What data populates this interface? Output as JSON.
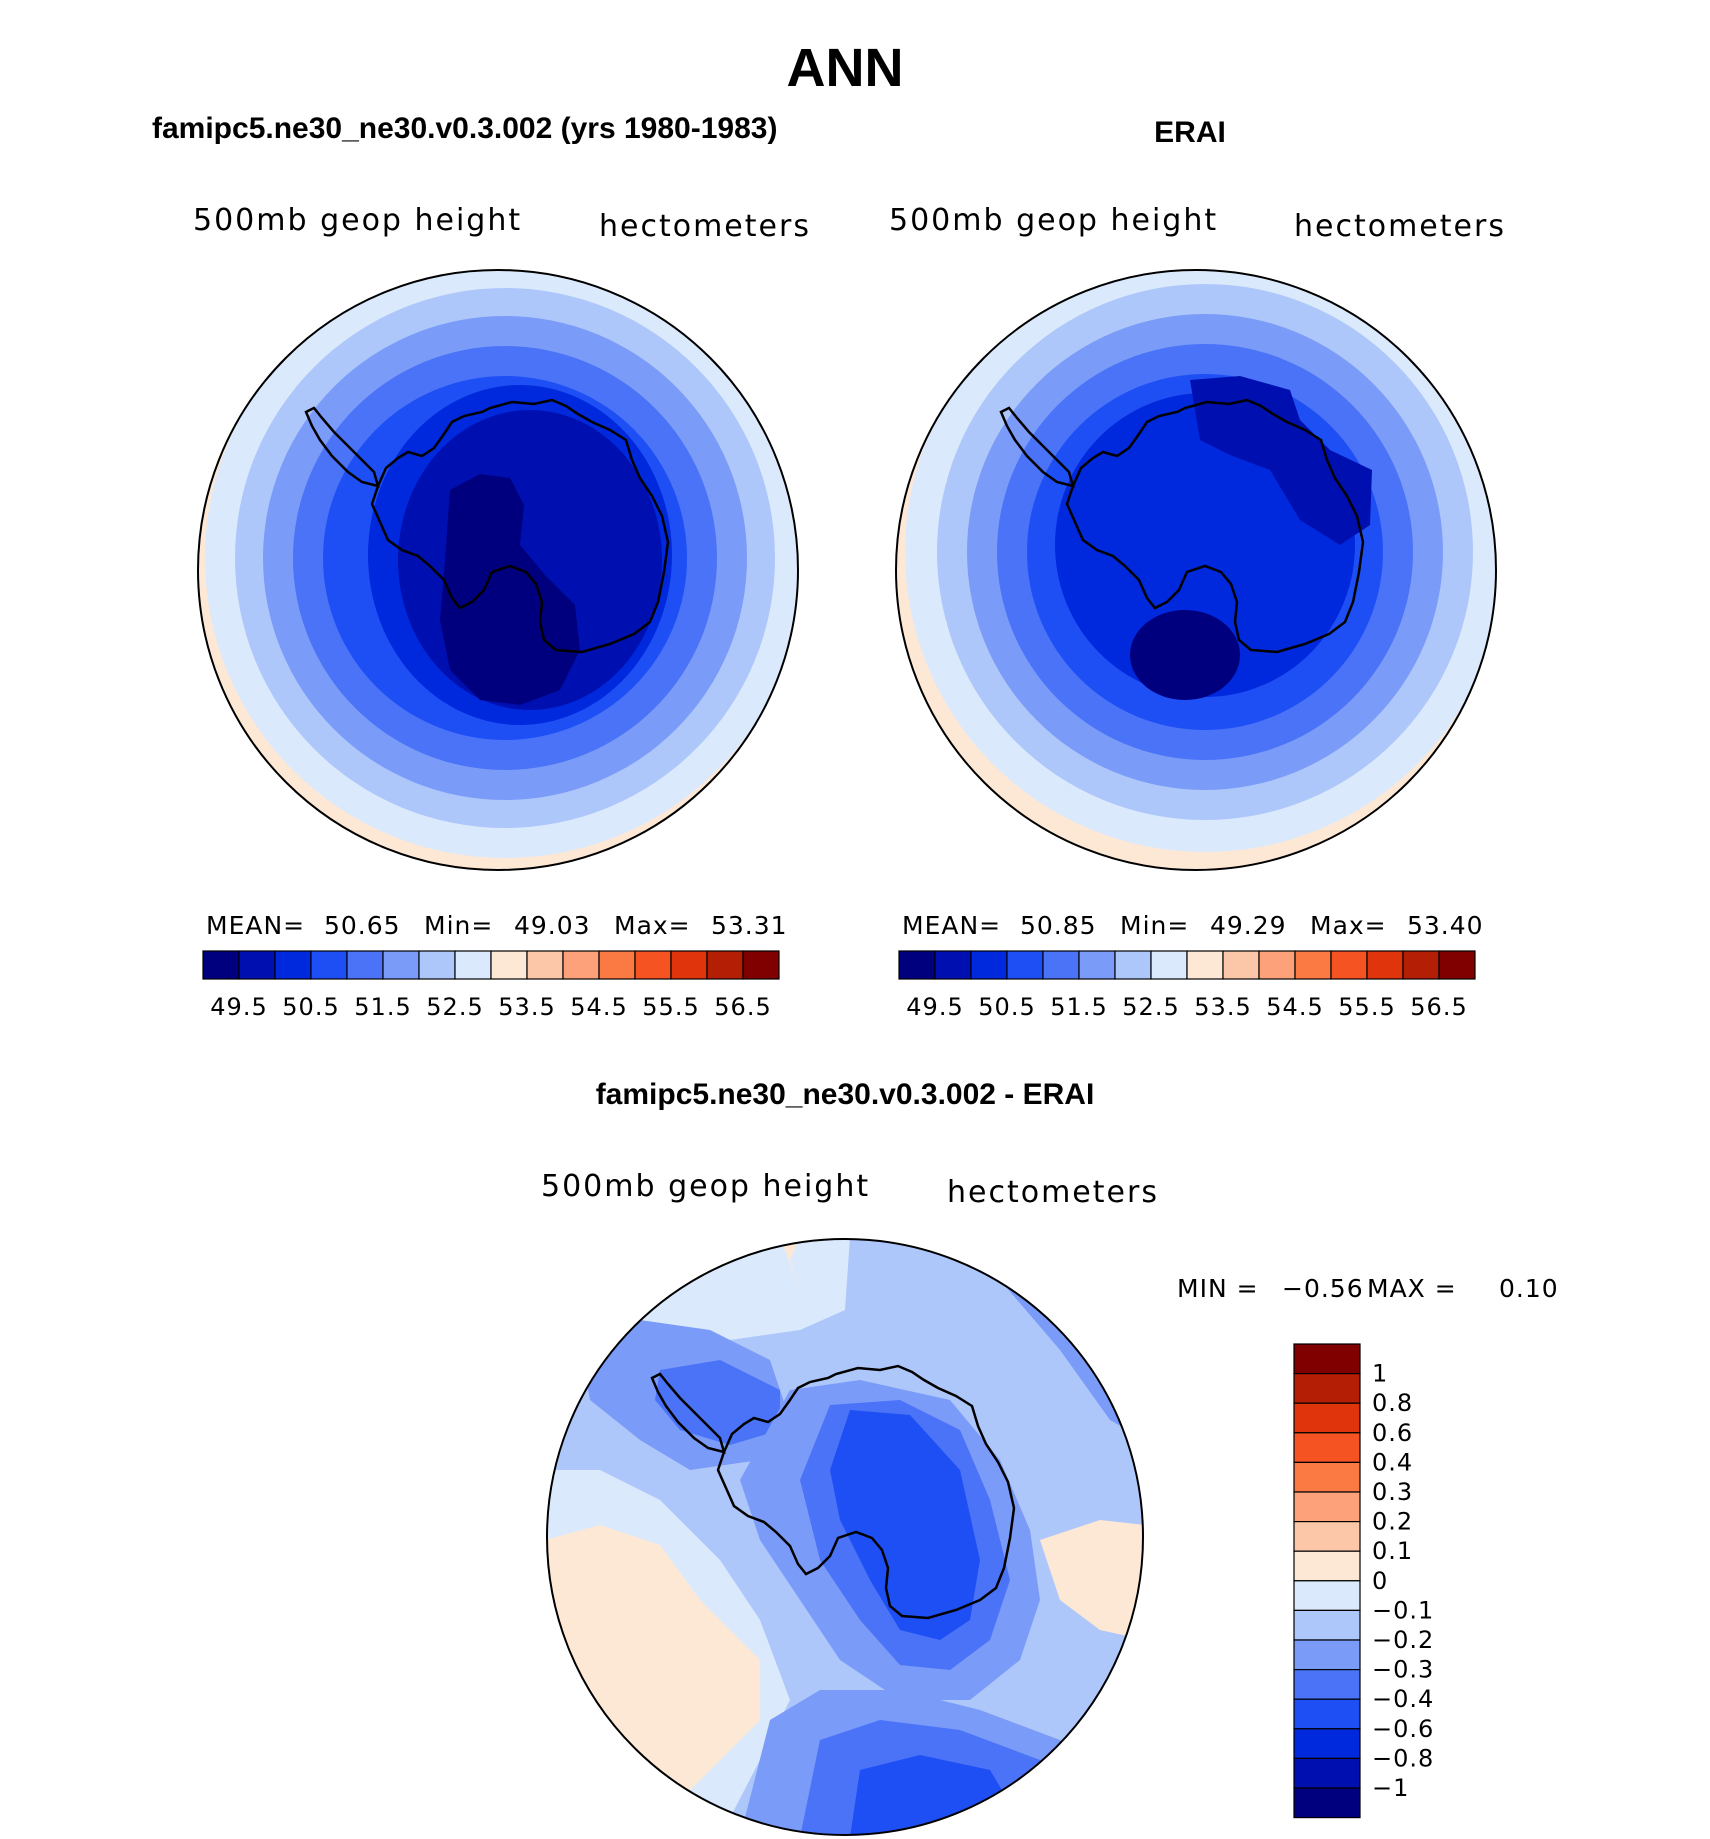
{
  "title": "ANN",
  "panels": [
    {
      "heading": "famipc5.ne30_ne30.v0.3.002 (yrs 1980-1983)",
      "variable": "500mb geop height",
      "units": "hectometers",
      "stats": {
        "mean_label": "MEAN=",
        "mean": "50.65",
        "min_label": "Min=",
        "min": "49.03",
        "max_label": "Max=",
        "max": "53.31"
      }
    },
    {
      "heading": "ERAI",
      "variable": "500mb geop height",
      "units": "hectometers",
      "stats": {
        "mean_label": "MEAN=",
        "mean": "50.85",
        "min_label": "Min=",
        "min": "49.29",
        "max_label": "Max=",
        "max": "53.40"
      }
    },
    {
      "heading": "famipc5.ne30_ne30.v0.3.002 - ERAI",
      "variable": "500mb geop height",
      "units": "hectometers",
      "stats": {
        "min_label": "MIN =",
        "min": "−0.56",
        "max_label": "MAX =",
        "max": "0.10"
      }
    }
  ],
  "colorbar_main": {
    "colors": [
      "#00007f",
      "#0010b0",
      "#0028dd",
      "#1e4ff5",
      "#4a73f7",
      "#7a9bf8",
      "#aec7fb",
      "#dbe9fc",
      "#fde8d6",
      "#fcc6a8",
      "#fca17a",
      "#fb7a44",
      "#f55322",
      "#e0340c",
      "#b31e05",
      "#800000"
    ],
    "tick_labels": [
      "49.5",
      "50.5",
      "51.5",
      "52.5",
      "53.5",
      "54.5",
      "55.5",
      "56.5"
    ]
  },
  "colorbar_diff": {
    "colors": [
      "#00007f",
      "#0010b0",
      "#0028dd",
      "#1e4ff5",
      "#4a73f7",
      "#7a9bf8",
      "#aec7fb",
      "#dbe9fc",
      "#fde8d6",
      "#fcc6a8",
      "#fca17a",
      "#fb7a44",
      "#f55322",
      "#e0340c",
      "#b31e05",
      "#800000"
    ],
    "tick_labels": [
      "1",
      "0.8",
      "0.6",
      "0.4",
      "0.3",
      "0.2",
      "0.1",
      "0",
      "−0.1",
      "−0.2",
      "−0.3",
      "−0.4",
      "−0.6",
      "−0.8",
      "−1"
    ]
  }
}
